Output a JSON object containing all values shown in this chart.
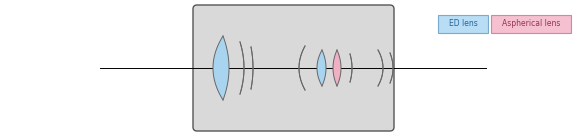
{
  "fig_width": 5.86,
  "fig_height": 1.36,
  "dpi": 100,
  "bg_color": "#ffffff",
  "body_color": "#d9d9d9",
  "body_edge_color": "#555555",
  "axis_line_color": "#000000",
  "ed_lens_color": "#a8d4f0",
  "asph_lens_color": "#f0b0c4",
  "white_lens_color": "#eeeeee",
  "edge_color": "#666666",
  "legend_ed_color": "#b8ddf5",
  "legend_asph_color": "#f5c0d0",
  "legend_ed_text": "ED lens",
  "legend_asph_text": "Aspherical lens"
}
